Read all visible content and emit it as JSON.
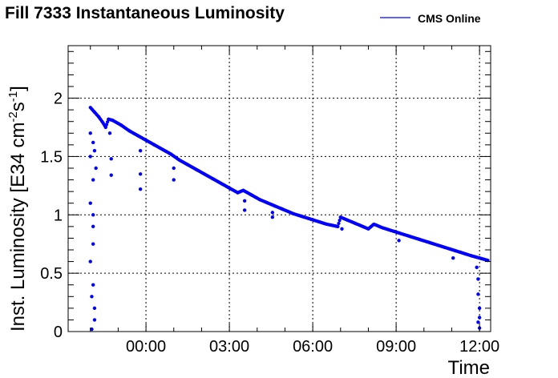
{
  "chart_data": {
    "type": "scatter",
    "title": "Fill 7333 Instantaneous Luminosity",
    "xlabel": "Time",
    "ylabel": "Inst. Luminosity [E34 cm",
    "ylabel_sup1": "-2",
    "ylabel_mid": "s",
    "ylabel_sup2": "-1",
    "ylabel_end": "]",
    "legend": {
      "label": "CMS Online",
      "color": "#0000ff",
      "placement": "top-right"
    },
    "xlim": [
      -2.8,
      12.4
    ],
    "ylim": [
      0,
      2.45
    ],
    "xticks": [
      {
        "value": 0,
        "label": "00:00"
      },
      {
        "value": 3,
        "label": "03:00"
      },
      {
        "value": 6,
        "label": "06:00"
      },
      {
        "value": 9,
        "label": "09:00"
      },
      {
        "value": 12,
        "label": "12:00"
      }
    ],
    "yticks": [
      {
        "value": 0,
        "label": "0"
      },
      {
        "value": 0.5,
        "label": "0.5"
      },
      {
        "value": 1,
        "label": "1"
      },
      {
        "value": 1.5,
        "label": "1.5"
      },
      {
        "value": 2,
        "label": "2"
      }
    ],
    "grid": true,
    "series": [
      {
        "name": "CMS Online",
        "color": "#0000ff",
        "points": [
          [
            -2.0,
            1.92
          ],
          [
            -1.85,
            1.88
          ],
          [
            -1.7,
            1.84
          ],
          [
            -1.55,
            1.79
          ],
          [
            -1.45,
            1.75
          ],
          [
            -1.35,
            1.82
          ],
          [
            -1.2,
            1.81
          ],
          [
            -0.9,
            1.77
          ],
          [
            -0.6,
            1.72
          ],
          [
            -0.3,
            1.68
          ],
          [
            0.0,
            1.64
          ],
          [
            0.3,
            1.6
          ],
          [
            0.6,
            1.56
          ],
          [
            0.9,
            1.52
          ],
          [
            1.2,
            1.47
          ],
          [
            1.5,
            1.43
          ],
          [
            1.8,
            1.39
          ],
          [
            2.1,
            1.35
          ],
          [
            2.4,
            1.31
          ],
          [
            2.7,
            1.27
          ],
          [
            3.0,
            1.23
          ],
          [
            3.3,
            1.19
          ],
          [
            3.5,
            1.21
          ],
          [
            3.8,
            1.17
          ],
          [
            4.1,
            1.13
          ],
          [
            4.5,
            1.09
          ],
          [
            4.9,
            1.05
          ],
          [
            5.3,
            1.01
          ],
          [
            5.7,
            0.98
          ],
          [
            6.1,
            0.95
          ],
          [
            6.5,
            0.92
          ],
          [
            6.9,
            0.9
          ],
          [
            7.0,
            0.98
          ],
          [
            7.3,
            0.95
          ],
          [
            7.6,
            0.92
          ],
          [
            8.0,
            0.88
          ],
          [
            8.2,
            0.92
          ],
          [
            8.5,
            0.89
          ],
          [
            8.9,
            0.86
          ],
          [
            9.3,
            0.83
          ],
          [
            9.7,
            0.8
          ],
          [
            10.1,
            0.77
          ],
          [
            10.5,
            0.74
          ],
          [
            10.9,
            0.71
          ],
          [
            11.3,
            0.68
          ],
          [
            11.7,
            0.65
          ],
          [
            12.0,
            0.63
          ],
          [
            12.3,
            0.61
          ]
        ],
        "dips": [
          [
            -2.0,
            1.7
          ],
          [
            -2.0,
            1.5
          ],
          [
            -2.0,
            1.1
          ],
          [
            -2.0,
            0.6
          ],
          [
            -1.9,
            1.3
          ],
          [
            -1.9,
            1.0
          ],
          [
            -1.9,
            0.75
          ],
          [
            -1.9,
            0.4
          ],
          [
            -1.85,
            0.2
          ],
          [
            -1.85,
            0.1
          ],
          [
            -1.9,
            1.62
          ],
          [
            -1.85,
            1.55
          ],
          [
            -1.95,
            0.02
          ],
          [
            -1.8,
            1.4
          ],
          [
            -1.9,
            0.9
          ],
          [
            -1.95,
            0.3
          ],
          [
            -1.25,
            1.48
          ],
          [
            -1.25,
            1.34
          ],
          [
            -1.3,
            1.7
          ],
          [
            -0.2,
            1.55
          ],
          [
            -0.2,
            1.35
          ],
          [
            -0.2,
            1.22
          ],
          [
            1.0,
            1.4
          ],
          [
            1.0,
            1.3
          ],
          [
            3.55,
            1.12
          ],
          [
            3.55,
            1.04
          ],
          [
            4.55,
            1.02
          ],
          [
            4.55,
            0.98
          ],
          [
            7.05,
            0.88
          ],
          [
            9.1,
            0.78
          ],
          [
            11.05,
            0.63
          ],
          [
            11.9,
            0.55
          ],
          [
            11.95,
            0.45
          ],
          [
            11.95,
            0.32
          ],
          [
            12.0,
            0.2
          ],
          [
            11.95,
            0.08
          ],
          [
            12.0,
            0.03
          ],
          [
            12.0,
            0.12
          ]
        ]
      }
    ]
  }
}
